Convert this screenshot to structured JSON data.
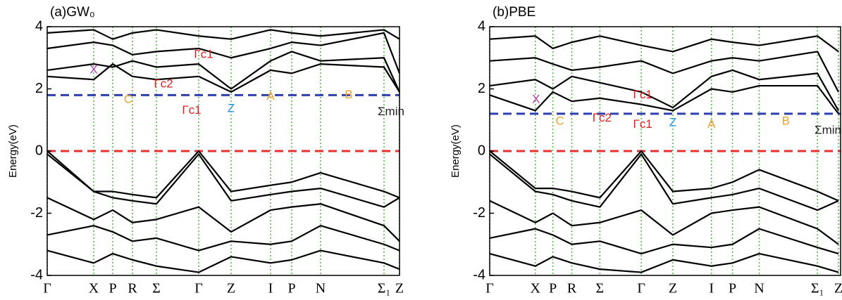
{
  "chart_data": [
    {
      "type": "line",
      "title": "(a)GW₀",
      "ylabel": "Energy(eV)",
      "xlim": [
        0,
        500
      ],
      "xticks": [
        {
          "value": 0,
          "label": "Γ"
        },
        {
          "value": 66,
          "label": "X"
        },
        {
          "value": 93,
          "label": "P"
        },
        {
          "value": 121,
          "label": "R"
        },
        {
          "value": 155,
          "label": "Σ"
        },
        {
          "value": 215,
          "label": "Γ"
        },
        {
          "value": 261,
          "label": "Z"
        },
        {
          "value": 317,
          "label": "I"
        },
        {
          "value": 347,
          "label": "P"
        },
        {
          "value": 388,
          "label": "N"
        },
        {
          "value": 478,
          "label": "Σ₁"
        },
        {
          "value": 500,
          "label": "Z"
        }
      ],
      "ylim": [
        -4,
        4
      ],
      "yticks": [
        -4,
        -2,
        0,
        2,
        4
      ],
      "vgrid": true,
      "vgrid_color": "#4ab83a",
      "hlines": [
        {
          "value": 0,
          "color": "#e8312f"
        },
        {
          "value": 1.8,
          "color": "#2f3fb0"
        }
      ],
      "series": [
        {
          "color": "#000000",
          "values": [
            0,
            -1.3,
            -1.3,
            -1.4,
            -1.5,
            0,
            -1.3,
            -1.1,
            -1.0,
            -0.7,
            -1.3,
            -1.5
          ]
        },
        {
          "color": "#000000",
          "values": [
            -0.1,
            -1.3,
            -1.5,
            -1.6,
            -1.7,
            -0.1,
            -1.6,
            -1.4,
            -1.3,
            -1.2,
            -1.8,
            -1.5
          ]
        },
        {
          "color": "#000000",
          "values": [
            -1.5,
            -2.2,
            -1.9,
            -2.3,
            -2.2,
            -1.8,
            -2.6,
            -1.9,
            -1.8,
            -1.7,
            -2.4,
            -2.9
          ]
        },
        {
          "color": "#000000",
          "values": [
            -2.7,
            -2.4,
            -2.6,
            -2.9,
            -2.8,
            -3.2,
            -2.9,
            -3.0,
            -2.9,
            -2.4,
            -3.0,
            -3.2
          ]
        },
        {
          "color": "#000000",
          "values": [
            -3.2,
            -3.6,
            -3.3,
            -3.5,
            -3.7,
            -3.9,
            -3.4,
            -3.6,
            -3.5,
            -3.2,
            -3.6,
            -3.8
          ]
        },
        {
          "color": "#000000",
          "values": [
            2.4,
            2.3,
            2.8,
            2.4,
            2.3,
            2.4,
            1.9,
            2.6,
            2.5,
            2.8,
            2.7,
            1.9
          ]
        },
        {
          "color": "#000000",
          "values": [
            2.6,
            2.8,
            2.7,
            2.9,
            2.7,
            2.8,
            2.0,
            2.9,
            3.2,
            2.9,
            3.0,
            1.9
          ]
        },
        {
          "color": "#000000",
          "values": [
            3.3,
            3.5,
            3.4,
            3.1,
            3.2,
            3.3,
            3.0,
            3.3,
            3.5,
            3.4,
            3.8,
            2.5
          ]
        },
        {
          "color": "#000000",
          "values": [
            3.8,
            3.9,
            3.6,
            3.8,
            3.9,
            3.7,
            3.6,
            3.9,
            3.8,
            3.7,
            3.9,
            3.6
          ]
        }
      ],
      "annotations": [
        {
          "text": "X",
          "color": "#b040b0"
        },
        {
          "text": "C",
          "color": "#f0a030"
        },
        {
          "text": "Γc2",
          "color": "#e02020"
        },
        {
          "text": "Γc1",
          "color": "#e02020"
        },
        {
          "text": "Γc1",
          "color": "#e02020"
        },
        {
          "text": "Z",
          "color": "#2090e0"
        },
        {
          "text": "A",
          "color": "#f0a030"
        },
        {
          "text": "B",
          "color": "#f0a030"
        },
        {
          "text": "Σmin",
          "color": "#222222"
        }
      ]
    },
    {
      "type": "line",
      "title": "(b)PBE",
      "ylabel": "Energy(eV)",
      "xlim": [
        0,
        500
      ],
      "xticks": [
        {
          "value": 0,
          "label": "Γ"
        },
        {
          "value": 65,
          "label": "X"
        },
        {
          "value": 90,
          "label": "P"
        },
        {
          "value": 117,
          "label": "R"
        },
        {
          "value": 157,
          "label": "Σ"
        },
        {
          "value": 216,
          "label": "Γ"
        },
        {
          "value": 261,
          "label": "Z"
        },
        {
          "value": 316,
          "label": "I"
        },
        {
          "value": 346,
          "label": "P"
        },
        {
          "value": 384,
          "label": "N"
        },
        {
          "value": 467,
          "label": "Σ₁"
        },
        {
          "value": 497,
          "label": "Z"
        }
      ],
      "ylim": [
        -4,
        4
      ],
      "yticks": [
        -4,
        -2,
        0,
        2,
        4
      ],
      "vgrid": true,
      "vgrid_color": "#4ab83a",
      "hlines": [
        {
          "value": 0,
          "color": "#e8312f"
        },
        {
          "value": 1.2,
          "color": "#2f3fb0"
        }
      ],
      "series": [
        {
          "color": "#000000",
          "values": [
            0,
            -1.2,
            -1.2,
            -1.3,
            -1.5,
            0,
            -1.3,
            -1.2,
            -1.0,
            -0.6,
            -1.3,
            -1.6
          ]
        },
        {
          "color": "#000000",
          "values": [
            -0.1,
            -1.3,
            -1.4,
            -1.6,
            -1.8,
            -0.1,
            -1.7,
            -1.5,
            -1.4,
            -1.2,
            -1.9,
            -1.6
          ]
        },
        {
          "color": "#000000",
          "values": [
            -1.6,
            -2.3,
            -2.0,
            -2.4,
            -2.3,
            -1.9,
            -2.7,
            -2.0,
            -1.9,
            -1.8,
            -2.5,
            -3.0
          ]
        },
        {
          "color": "#000000",
          "values": [
            -2.8,
            -2.5,
            -2.7,
            -3.0,
            -2.9,
            -3.3,
            -3.0,
            -3.1,
            -3.0,
            -2.5,
            -3.1,
            -3.3
          ]
        },
        {
          "color": "#000000",
          "values": [
            -3.3,
            -3.7,
            -3.4,
            -3.6,
            -3.8,
            -3.9,
            -3.5,
            -3.7,
            -3.6,
            -3.3,
            -3.7,
            -3.9
          ]
        },
        {
          "color": "#000000",
          "values": [
            1.8,
            1.3,
            1.9,
            1.6,
            1.7,
            1.5,
            1.3,
            2.0,
            1.9,
            2.1,
            2.1,
            1.2
          ]
        },
        {
          "color": "#000000",
          "values": [
            2.1,
            2.3,
            2.0,
            2.4,
            2.2,
            1.9,
            1.4,
            2.4,
            2.6,
            2.3,
            2.5,
            1.3
          ]
        },
        {
          "color": "#000000",
          "values": [
            2.9,
            3.0,
            2.8,
            2.6,
            2.7,
            2.9,
            2.5,
            2.9,
            3.0,
            2.9,
            3.2,
            1.9
          ]
        },
        {
          "color": "#000000",
          "values": [
            3.6,
            3.7,
            3.3,
            3.5,
            3.7,
            3.4,
            3.2,
            3.6,
            3.5,
            3.4,
            3.7,
            3.2
          ]
        }
      ],
      "annotations": [
        {
          "text": "X",
          "color": "#b040b0"
        },
        {
          "text": "C",
          "color": "#f0a030"
        },
        {
          "text": "Γc2",
          "color": "#e02020"
        },
        {
          "text": "Γc1",
          "color": "#e02020"
        },
        {
          "text": "Γc1",
          "color": "#e02020"
        },
        {
          "text": "Z",
          "color": "#2090e0"
        },
        {
          "text": "A",
          "color": "#f0a030"
        },
        {
          "text": "B",
          "color": "#f0a030"
        },
        {
          "text": "Σmin",
          "color": "#222222"
        }
      ]
    }
  ]
}
